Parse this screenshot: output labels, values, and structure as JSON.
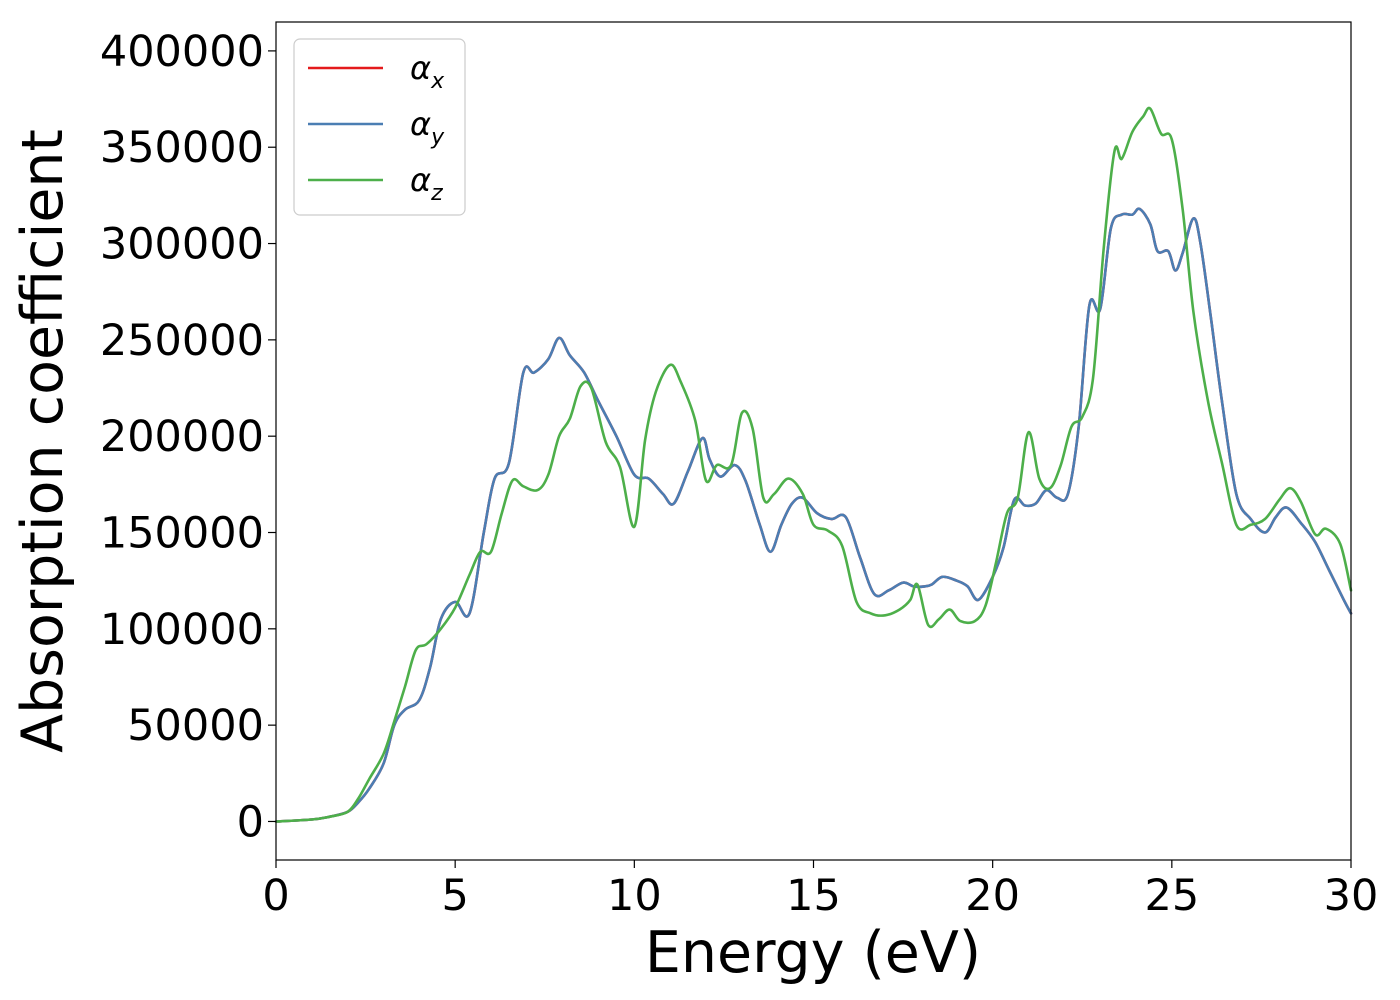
{
  "chart_data": {
    "type": "line",
    "title": "",
    "xlabel": "Energy (eV)",
    "ylabel": "Absorption coefficient",
    "xlim": [
      0,
      30
    ],
    "ylim": [
      -20000,
      415000
    ],
    "xticks": [
      0,
      5,
      10,
      15,
      20,
      25,
      30
    ],
    "yticks": [
      0,
      50000,
      100000,
      150000,
      200000,
      250000,
      300000,
      350000,
      400000
    ],
    "grid": false,
    "legend_position": "top-left",
    "series": [
      {
        "name": "α_x",
        "label_base": "α",
        "label_sub": "x",
        "color": "#e41a1c",
        "x": [
          0,
          1,
          1.5,
          2,
          2.3,
          2.6,
          3,
          3.3,
          3.6,
          4,
          4.3,
          4.6,
          5,
          5.4,
          5.8,
          6.1,
          6.5,
          6.9,
          7.2,
          7.6,
          7.9,
          8.2,
          8.6,
          9,
          9.5,
          10,
          10.4,
          10.8,
          11.1,
          11.5,
          11.9,
          12.1,
          12.4,
          12.8,
          13.1,
          13.5,
          13.8,
          14.1,
          14.4,
          14.7,
          15.1,
          15.5,
          15.9,
          16.3,
          16.7,
          17.1,
          17.5,
          17.8,
          18.1,
          18.3,
          18.6,
          19,
          19.3,
          19.6,
          20,
          20.3,
          20.6,
          20.9,
          21.2,
          21.5,
          21.8,
          22.1,
          22.4,
          22.7,
          23,
          23.3,
          23.6,
          23.9,
          24.1,
          24.4,
          24.6,
          24.9,
          25.1,
          25.3,
          25.6,
          25.8,
          26.1,
          26.4,
          26.8,
          27.2,
          27.6,
          27.9,
          28.2,
          28.6,
          29,
          29.4,
          29.8,
          30
        ],
        "y": [
          0,
          1000,
          2500,
          5000,
          10000,
          17000,
          30000,
          50000,
          58000,
          63000,
          80000,
          105000,
          114000,
          108000,
          150000,
          178000,
          186000,
          233000,
          233000,
          240000,
          251000,
          242000,
          233000,
          218000,
          200000,
          180000,
          178000,
          170000,
          165000,
          182000,
          199000,
          188000,
          179000,
          185000,
          177000,
          154000,
          140000,
          154000,
          165000,
          168000,
          160000,
          157000,
          158000,
          137000,
          118000,
          120000,
          124000,
          122000,
          122000,
          123000,
          127000,
          125000,
          122000,
          115000,
          127000,
          142000,
          167000,
          164000,
          165000,
          172000,
          168000,
          170000,
          205000,
          268000,
          266000,
          308000,
          315000,
          315000,
          318000,
          310000,
          296000,
          296000,
          286000,
          295000,
          313000,
          300000,
          260000,
          218000,
          170000,
          157000,
          150000,
          158000,
          163000,
          155000,
          145000,
          130000,
          115000,
          108000
        ]
      },
      {
        "name": "α_y",
        "label_base": "α",
        "label_sub": "y",
        "color": "#4b7eb3",
        "x": [
          0,
          1,
          1.5,
          2,
          2.3,
          2.6,
          3,
          3.3,
          3.6,
          4,
          4.3,
          4.6,
          5,
          5.4,
          5.8,
          6.1,
          6.5,
          6.9,
          7.2,
          7.6,
          7.9,
          8.2,
          8.6,
          9,
          9.5,
          10,
          10.4,
          10.8,
          11.1,
          11.5,
          11.9,
          12.1,
          12.4,
          12.8,
          13.1,
          13.5,
          13.8,
          14.1,
          14.4,
          14.7,
          15.1,
          15.5,
          15.9,
          16.3,
          16.7,
          17.1,
          17.5,
          17.8,
          18.1,
          18.3,
          18.6,
          19,
          19.3,
          19.6,
          20,
          20.3,
          20.6,
          20.9,
          21.2,
          21.5,
          21.8,
          22.1,
          22.4,
          22.7,
          23,
          23.3,
          23.6,
          23.9,
          24.1,
          24.4,
          24.6,
          24.9,
          25.1,
          25.3,
          25.6,
          25.8,
          26.1,
          26.4,
          26.8,
          27.2,
          27.6,
          27.9,
          28.2,
          28.6,
          29,
          29.4,
          29.8,
          30
        ],
        "y": [
          0,
          1000,
          2500,
          5000,
          10000,
          17000,
          30000,
          50000,
          58000,
          63000,
          80000,
          105000,
          114000,
          108000,
          150000,
          178000,
          186000,
          233000,
          233000,
          240000,
          251000,
          242000,
          233000,
          218000,
          200000,
          180000,
          178000,
          170000,
          165000,
          182000,
          199000,
          188000,
          179000,
          185000,
          177000,
          154000,
          140000,
          154000,
          165000,
          168000,
          160000,
          157000,
          158000,
          137000,
          118000,
          120000,
          124000,
          122000,
          122000,
          123000,
          127000,
          125000,
          122000,
          115000,
          127000,
          142000,
          167000,
          164000,
          165000,
          172000,
          168000,
          170000,
          205000,
          268000,
          266000,
          308000,
          315000,
          315000,
          318000,
          310000,
          296000,
          296000,
          286000,
          295000,
          313000,
          300000,
          260000,
          218000,
          170000,
          157000,
          150000,
          158000,
          163000,
          155000,
          145000,
          130000,
          115000,
          108000
        ]
      },
      {
        "name": "α_z",
        "label_base": "α",
        "label_sub": "z",
        "color": "#4daf4a",
        "x": [
          0,
          1,
          1.5,
          2,
          2.3,
          2.6,
          3,
          3.3,
          3.6,
          3.9,
          4.2,
          4.6,
          5,
          5.4,
          5.7,
          6,
          6.3,
          6.6,
          6.9,
          7.3,
          7.6,
          7.9,
          8.2,
          8.5,
          8.8,
          9.2,
          9.6,
          10,
          10.3,
          10.6,
          11,
          11.3,
          11.7,
          12,
          12.3,
          12.7,
          13,
          13.3,
          13.6,
          13.9,
          14.3,
          14.7,
          15,
          15.4,
          15.8,
          16.2,
          16.6,
          17,
          17.4,
          17.7,
          17.9,
          18.2,
          18.5,
          18.8,
          19.1,
          19.5,
          19.8,
          20.1,
          20.4,
          20.7,
          21,
          21.3,
          21.6,
          21.9,
          22.2,
          22.5,
          22.8,
          23.1,
          23.4,
          23.6,
          23.9,
          24.2,
          24.4,
          24.7,
          25,
          25.3,
          25.6,
          26,
          26.4,
          26.8,
          27.2,
          27.6,
          28,
          28.3,
          28.6,
          29,
          29.3,
          29.7,
          30
        ],
        "y": [
          0,
          1000,
          2500,
          5000,
          12000,
          22000,
          35000,
          52000,
          70000,
          89000,
          92000,
          100000,
          111000,
          128000,
          140000,
          140000,
          160000,
          177000,
          174000,
          172000,
          180000,
          200000,
          209000,
          226000,
          225000,
          197000,
          184000,
          153000,
          198000,
          223000,
          237000,
          228000,
          208000,
          177000,
          185000,
          185000,
          212000,
          204000,
          168000,
          170000,
          178000,
          170000,
          154000,
          151000,
          143000,
          114000,
          108000,
          107000,
          110000,
          115000,
          123000,
          102000,
          105000,
          110000,
          104000,
          104000,
          112000,
          135000,
          160000,
          168000,
          202000,
          178000,
          173000,
          185000,
          205000,
          210000,
          230000,
          298000,
          348000,
          344000,
          358000,
          366000,
          370000,
          357000,
          354000,
          318000,
          265000,
          219000,
          186000,
          154000,
          154000,
          157000,
          167000,
          173000,
          166000,
          149000,
          152000,
          144000,
          120000
        ]
      }
    ]
  }
}
